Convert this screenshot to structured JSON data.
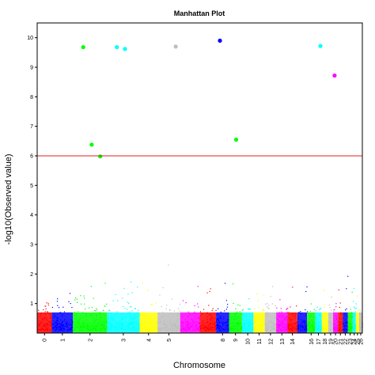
{
  "chart_data": {
    "type": "scatter",
    "title": "Manhattan Plot",
    "xlabel": "Chromosome",
    "ylabel": "-log10(Observed value)",
    "ylim": [
      0,
      10.5
    ],
    "yticks": [
      1,
      2,
      3,
      4,
      5,
      6,
      7,
      8,
      9,
      10
    ],
    "threshold": {
      "value": 6,
      "color": "#e02020"
    },
    "grid": false,
    "legend": "none",
    "chromosomes": [
      {
        "label": "0",
        "start": 0,
        "end": 0.045,
        "color": "#ff0000"
      },
      {
        "label": "1",
        "start": 0.045,
        "end": 0.11,
        "color": "#0000ff"
      },
      {
        "label": "2",
        "start": 0.11,
        "end": 0.215,
        "color": "#00ff00"
      },
      {
        "label": "3",
        "start": 0.215,
        "end": 0.315,
        "color": "#00ffff"
      },
      {
        "label": "4",
        "start": 0.315,
        "end": 0.37,
        "color": "#ffff00"
      },
      {
        "label": "5",
        "start": 0.37,
        "end": 0.44,
        "color": "#bebebe"
      },
      {
        "label": "6",
        "start": 0.44,
        "end": 0.5,
        "color": "#ff00ff"
      },
      {
        "label": "7",
        "start": 0.5,
        "end": 0.55,
        "color": "#ff0000"
      },
      {
        "label": "8",
        "start": 0.55,
        "end": 0.59,
        "color": "#0000ff"
      },
      {
        "label": "9",
        "start": 0.59,
        "end": 0.63,
        "color": "#00ff00"
      },
      {
        "label": "10",
        "start": 0.63,
        "end": 0.665,
        "color": "#00ffff"
      },
      {
        "label": "11",
        "start": 0.665,
        "end": 0.7,
        "color": "#ffff00"
      },
      {
        "label": "12",
        "start": 0.7,
        "end": 0.735,
        "color": "#bebebe"
      },
      {
        "label": "13",
        "start": 0.735,
        "end": 0.77,
        "color": "#ff00ff"
      },
      {
        "label": "14",
        "start": 0.77,
        "end": 0.8,
        "color": "#ff0000"
      },
      {
        "label": "15",
        "start": 0.8,
        "end": 0.83,
        "color": "#0000ff"
      },
      {
        "label": "16",
        "start": 0.83,
        "end": 0.855,
        "color": "#00ff00"
      },
      {
        "label": "17",
        "start": 0.855,
        "end": 0.875,
        "color": "#00ffff"
      },
      {
        "label": "18",
        "start": 0.875,
        "end": 0.895,
        "color": "#ffff00"
      },
      {
        "label": "19",
        "start": 0.895,
        "end": 0.91,
        "color": "#bebebe"
      },
      {
        "label": "20",
        "start": 0.91,
        "end": 0.925,
        "color": "#ff00ff"
      },
      {
        "label": "21",
        "start": 0.925,
        "end": 0.94,
        "color": "#ff0000"
      },
      {
        "label": "22",
        "start": 0.94,
        "end": 0.955,
        "color": "#0000ff"
      },
      {
        "label": "23",
        "start": 0.955,
        "end": 0.97,
        "color": "#00ff00"
      },
      {
        "label": "24",
        "start": 0.97,
        "end": 0.98,
        "color": "#00ffff"
      },
      {
        "label": "25",
        "start": 0.98,
        "end": 0.99,
        "color": "#ffff00"
      },
      {
        "label": "26",
        "start": 0.99,
        "end": 1.0,
        "color": "#bebebe"
      }
    ],
    "xticks": [
      {
        "label": "0",
        "chr": "0"
      },
      {
        "label": "1",
        "chr": "1"
      },
      {
        "label": "2",
        "chr": "2"
      },
      {
        "label": "3",
        "chr": "3"
      },
      {
        "label": "4",
        "chr": "4"
      },
      {
        "label": "5",
        "chr": "5"
      },
      {
        "label": "8",
        "chr": "8"
      },
      {
        "label": "9",
        "chr": "9"
      },
      {
        "label": "10",
        "chr": "10"
      },
      {
        "label": "11",
        "chr": "11"
      },
      {
        "label": "12",
        "chr": "12"
      },
      {
        "label": "13",
        "chr": "13"
      },
      {
        "label": "14",
        "chr": "14"
      },
      {
        "label": "16",
        "chr": "16"
      },
      {
        "label": "17",
        "chr": "17"
      },
      {
        "label": "18",
        "chr": "18"
      },
      {
        "label": "19",
        "chr": "19"
      },
      {
        "label": "20",
        "chr": "20"
      },
      {
        "label": "21",
        "chr": "21"
      },
      {
        "label": "22",
        "chr": "22"
      },
      {
        "label": "23",
        "chr": "23"
      },
      {
        "label": "24",
        "chr": "24"
      },
      {
        "label": "25",
        "chr": "25"
      },
      {
        "label": "26",
        "chr": "26"
      }
    ],
    "significant_points": [
      {
        "chr": "2",
        "y": 9.68,
        "color": "#00ff00"
      },
      {
        "chr": "2",
        "y": 6.38,
        "color": "#00ff00"
      },
      {
        "chr": "2",
        "y": 5.98,
        "color": "#00ff00"
      },
      {
        "chr": "3",
        "y": 9.68,
        "color": "#00ffff"
      },
      {
        "chr": "3",
        "y": 9.62,
        "color": "#00ffff"
      },
      {
        "chr": "5",
        "y": 9.7,
        "color": "#bebebe"
      },
      {
        "chr": "8",
        "y": 9.9,
        "color": "#0000ff"
      },
      {
        "chr": "9",
        "y": 6.55,
        "color": "#00ff00"
      },
      {
        "chr": "17",
        "y": 9.72,
        "color": "#00ffff"
      },
      {
        "chr": "20",
        "y": 8.72,
        "color": "#ff00ff"
      }
    ]
  }
}
